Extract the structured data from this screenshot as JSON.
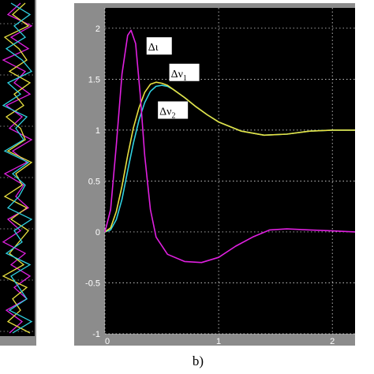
{
  "caption": "b)",
  "colors": {
    "figure_bg": "#8c8c8c",
    "axes_bg": "#000000",
    "tick_text": "#ffffff",
    "grid": "#ffffff",
    "callout_box": "#ffffff",
    "magenta": "#e020e0",
    "yellow": "#e8e040",
    "cyan": "#30d0e0"
  },
  "left_panel": {
    "description_free": true,
    "series": [
      {
        "color_key": "magenta",
        "values": [
          0.2,
          -0.6,
          0.9,
          -0.4,
          0.7,
          -0.9,
          0.5,
          -0.2,
          0.8,
          -0.7,
          0.3,
          -0.5,
          0.9,
          -0.3,
          0.6,
          -0.8,
          0.4,
          -0.1,
          0.7,
          -0.6,
          0.2,
          -0.9,
          0.5,
          -0.4,
          0.8,
          -0.2,
          0.6,
          -0.7,
          0.3,
          -0.5
        ]
      },
      {
        "color_key": "yellow",
        "values": [
          0.5,
          -0.3,
          0.7,
          -0.8,
          0.1,
          0.6,
          -0.5,
          0.8,
          -0.2,
          0.4,
          -0.7,
          0.2,
          0.5,
          -0.6,
          0.9,
          -0.1,
          0.3,
          -0.8,
          0.6,
          -0.4,
          0.7,
          0.1,
          -0.5,
          0.4,
          -0.9,
          0.6,
          -0.3,
          0.2,
          -0.6,
          0.8
        ]
      },
      {
        "color_key": "cyan",
        "values": [
          -0.4,
          0.8,
          -0.2,
          0.5,
          -0.7,
          0.3,
          0.9,
          -0.6,
          0.2,
          -0.9,
          0.6,
          -0.1,
          0.4,
          -0.8,
          0.7,
          -0.3,
          0.5,
          0.1,
          -0.6,
          0.9,
          -0.2,
          0.3,
          -0.7,
          0.8,
          -0.4,
          0.1,
          0.6,
          -0.5,
          0.9,
          -0.3
        ]
      }
    ]
  },
  "chart_data": {
    "type": "line",
    "title": "",
    "xlabel": "",
    "ylabel": "",
    "xlim": [
      0,
      2.2
    ],
    "ylim": [
      -1,
      2.2
    ],
    "x_ticks": [
      0,
      1,
      2
    ],
    "x_tick_labels": [
      "0",
      "1",
      "2"
    ],
    "y_ticks": [
      2,
      1.5,
      1,
      0.5,
      0,
      -0.5,
      -1
    ],
    "y_tick_labels": [
      "2",
      "1.5",
      "1",
      "0.5",
      "0",
      "-0.5",
      "-1"
    ],
    "grid": true,
    "series": [
      {
        "name": "Δι",
        "color_key": "magenta",
        "x": [
          0,
          0.05,
          0.1,
          0.15,
          0.2,
          0.23,
          0.27,
          0.31,
          0.35,
          0.4,
          0.45,
          0.55,
          0.7,
          0.85,
          1.0,
          1.15,
          1.3,
          1.45,
          1.6,
          1.8,
          2.0,
          2.2
        ],
        "y": [
          0,
          0.22,
          0.85,
          1.55,
          1.93,
          1.98,
          1.85,
          1.35,
          0.75,
          0.22,
          -0.05,
          -0.22,
          -0.29,
          -0.3,
          -0.25,
          -0.14,
          -0.05,
          0.02,
          0.03,
          0.02,
          0.01,
          0.0
        ]
      },
      {
        "name": "Δν1",
        "color_key": "yellow",
        "x": [
          0,
          0.05,
          0.1,
          0.15,
          0.2,
          0.25,
          0.3,
          0.35,
          0.4,
          0.45,
          0.5,
          0.55,
          0.6,
          0.7,
          0.8,
          0.9,
          1.0,
          1.2,
          1.4,
          1.6,
          1.8,
          2.0,
          2.2
        ],
        "y": [
          0,
          0.04,
          0.2,
          0.45,
          0.75,
          1.02,
          1.22,
          1.37,
          1.45,
          1.47,
          1.46,
          1.44,
          1.4,
          1.32,
          1.23,
          1.15,
          1.08,
          0.99,
          0.95,
          0.96,
          0.99,
          1.0,
          1.0
        ]
      },
      {
        "name": "Δν2",
        "color_key": "cyan",
        "x": [
          0,
          0.05,
          0.1,
          0.15,
          0.2,
          0.25,
          0.3,
          0.35,
          0.4,
          0.45,
          0.5,
          0.55,
          0.6,
          0.7,
          0.8,
          0.9,
          1.0,
          1.2,
          1.4,
          1.6,
          1.8,
          2.0,
          2.2
        ],
        "y": [
          0,
          0.02,
          0.12,
          0.32,
          0.6,
          0.87,
          1.1,
          1.27,
          1.38,
          1.43,
          1.44,
          1.43,
          1.4,
          1.32,
          1.23,
          1.15,
          1.08,
          0.99,
          0.95,
          0.96,
          0.99,
          1.0,
          1.0
        ]
      }
    ],
    "annotations": [
      {
        "id": "a1",
        "symbol": "Δι",
        "sub": "",
        "x": 0.38,
        "y": 1.78
      },
      {
        "id": "a2",
        "symbol": "Δν",
        "sub": "1",
        "x": 0.58,
        "y": 1.52
      },
      {
        "id": "a3",
        "symbol": "Δν",
        "sub": "2",
        "x": 0.48,
        "y": 1.15
      }
    ]
  }
}
